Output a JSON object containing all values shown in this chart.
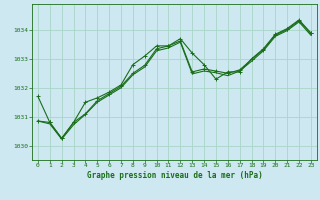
{
  "title": "Graphe pression niveau de la mer (hPa)",
  "background_color": "#cde8f0",
  "grid_color": "#a8d5c8",
  "line_color": "#1a6e1a",
  "xlim": [
    -0.5,
    23.5
  ],
  "ylim": [
    1029.5,
    1034.9
  ],
  "yticks": [
    1030,
    1031,
    1032,
    1033,
    1034
  ],
  "xticks": [
    0,
    1,
    2,
    3,
    4,
    5,
    6,
    7,
    8,
    9,
    10,
    11,
    12,
    13,
    14,
    15,
    16,
    17,
    18,
    19,
    20,
    21,
    22,
    23
  ],
  "series": [
    [
      1031.7,
      1030.8,
      1030.25,
      1030.8,
      1031.5,
      1031.65,
      1031.85,
      1032.1,
      1032.8,
      1033.1,
      1033.45,
      1033.45,
      1033.7,
      1033.2,
      1032.8,
      1032.3,
      1032.55,
      1032.55,
      1033.0,
      1033.35,
      1033.85,
      1034.05,
      1034.35,
      1033.9
    ],
    [
      1030.85,
      1030.8,
      1030.25,
      1030.8,
      1031.1,
      1031.55,
      1031.8,
      1032.05,
      1032.5,
      1032.78,
      1033.35,
      1033.45,
      1033.62,
      1032.55,
      1032.65,
      1032.58,
      1032.5,
      1032.62,
      1032.98,
      1033.32,
      1033.82,
      1034.02,
      1034.32,
      1033.88
    ],
    [
      1030.85,
      1030.75,
      1030.22,
      1030.72,
      1031.08,
      1031.5,
      1031.75,
      1032.0,
      1032.45,
      1032.72,
      1033.28,
      1033.38,
      1033.58,
      1032.48,
      1032.58,
      1032.52,
      1032.42,
      1032.58,
      1032.92,
      1033.28,
      1033.78,
      1033.98,
      1034.28,
      1033.82
    ]
  ],
  "title_fontsize": 5.5,
  "tick_fontsize": 4.5,
  "linewidth": 0.8,
  "markersize": 2.5
}
